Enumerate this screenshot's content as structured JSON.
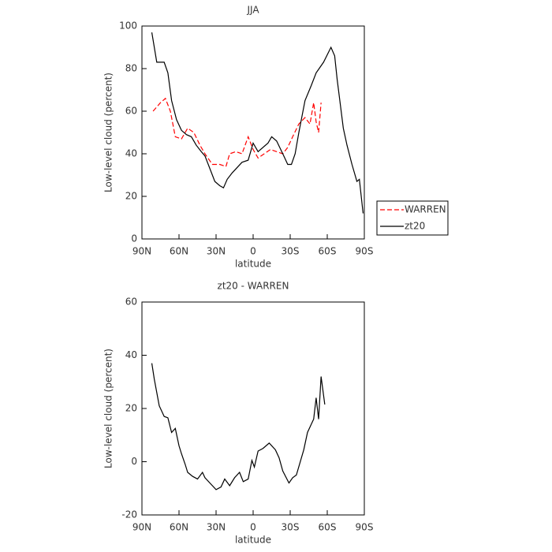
{
  "chart_data": [
    {
      "type": "line",
      "title": "JJA",
      "xlabel": "latitude",
      "ylabel": "Low-level cloud (percent)",
      "xlim": [
        90,
        -90
      ],
      "xticks": [
        {
          "value": 90,
          "label": "90N"
        },
        {
          "value": 60,
          "label": "60N"
        },
        {
          "value": 30,
          "label": "30N"
        },
        0,
        {
          "value": -30,
          "label": "30S"
        },
        {
          "value": -60,
          "label": "60S"
        },
        {
          "value": -90,
          "label": "90S"
        }
      ],
      "ylim": [
        0,
        100
      ],
      "yticks": [
        0,
        20,
        40,
        60,
        80,
        100
      ],
      "legend": "right",
      "series": [
        {
          "name": "WARREN",
          "color": "#ff0000",
          "dash": true,
          "x": [
            81,
            75,
            71,
            67,
            63,
            58,
            53,
            48,
            43,
            39,
            33,
            27,
            22,
            19,
            14,
            9,
            4,
            0,
            -4,
            -9,
            -14,
            -19,
            -24,
            -28,
            -32,
            -37,
            -42,
            -46,
            -49,
            -51,
            -53,
            -55
          ],
          "values": [
            60,
            64,
            66,
            60,
            48,
            47,
            52,
            50,
            44,
            40,
            35,
            35,
            34,
            40,
            41,
            40,
            48,
            42,
            38,
            40,
            42,
            41,
            40,
            43,
            48,
            54,
            57,
            54,
            64,
            55,
            50,
            64
          ]
        },
        {
          "name": "zt20",
          "color": "#000000",
          "dash": false,
          "x": [
            82,
            78,
            72,
            69,
            66,
            62,
            58,
            54,
            50,
            46,
            42,
            39,
            35,
            31,
            27,
            24,
            21,
            17,
            9,
            4,
            0,
            -4,
            -12,
            -15,
            -19,
            -24,
            -28,
            -31,
            -34,
            -37,
            -42,
            -47,
            -51,
            -57,
            -63,
            -66,
            -68,
            -73,
            -76,
            -80,
            -84,
            -86,
            -89
          ],
          "values": [
            97,
            83,
            83,
            78,
            65,
            56,
            51,
            49,
            48,
            44,
            41,
            39,
            33,
            27,
            25,
            24,
            28,
            31,
            36,
            37,
            45,
            41,
            45,
            48,
            46,
            40,
            35,
            35,
            40,
            50,
            65,
            72,
            78,
            83,
            90,
            86,
            75,
            52,
            44,
            35,
            27,
            28,
            12
          ]
        }
      ]
    },
    {
      "type": "line",
      "title": "zt20 - WARREN",
      "xlabel": "latitude",
      "ylabel": "Low-level cloud (percent)",
      "xlim": [
        90,
        -90
      ],
      "xticks": [
        {
          "value": 90,
          "label": "90N"
        },
        {
          "value": 60,
          "label": "60N"
        },
        {
          "value": 30,
          "label": "30N"
        },
        0,
        {
          "value": -30,
          "label": "30S"
        },
        {
          "value": -60,
          "label": "60S"
        },
        {
          "value": -90,
          "label": "90S"
        }
      ],
      "ylim": [
        -20,
        60
      ],
      "yticks": [
        -20,
        0,
        20,
        40,
        60
      ],
      "series": [
        {
          "color": "#000000",
          "dash": false,
          "x": [
            82,
            80,
            76,
            72,
            69,
            66,
            63,
            60,
            58,
            55,
            53,
            49,
            45,
            41,
            39,
            35,
            30,
            26,
            23,
            19,
            15,
            11,
            8,
            4,
            1,
            -1,
            -4,
            -8,
            -13,
            -18,
            -21,
            -24,
            -29,
            -32,
            -35,
            -41,
            -44,
            -49,
            -51,
            -53,
            -55,
            -58
          ],
          "values": [
            37,
            31,
            21,
            17,
            16.5,
            11,
            12.5,
            6,
            3,
            -1,
            -4,
            -5.5,
            -6.5,
            -4,
            -6,
            -8,
            -10.5,
            -9.5,
            -6.5,
            -9,
            -6,
            -4,
            -7.5,
            -6.5,
            0.5,
            -2,
            4,
            5,
            7,
            4.5,
            1.5,
            -3.5,
            -8,
            -6,
            -5,
            4.5,
            11,
            16,
            24,
            16,
            32,
            21.5
          ]
        }
      ]
    }
  ]
}
